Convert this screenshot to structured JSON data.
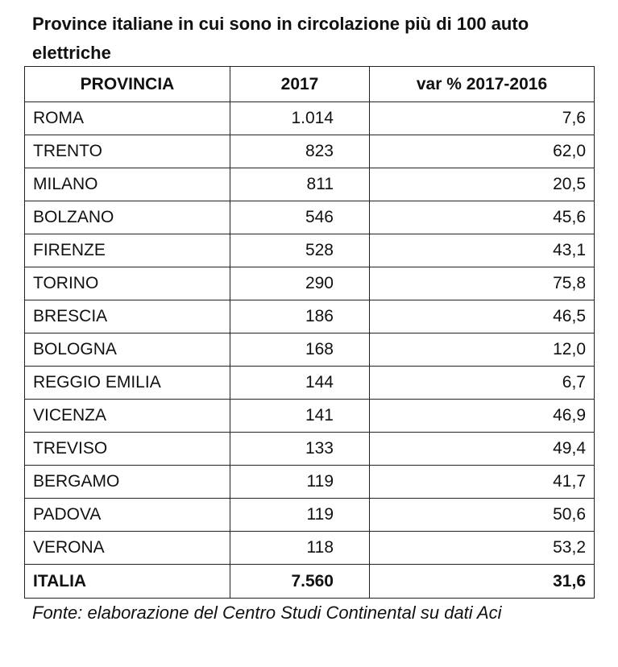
{
  "header": {
    "title": "Province italiane in cui sono in circolazione più di 100 auto elettriche"
  },
  "table": {
    "columns": [
      "PROVINCIA",
      "2017",
      "var % 2017-2016"
    ],
    "rows": [
      [
        "ROMA",
        "1.014",
        "7,6"
      ],
      [
        "TRENTO",
        "823",
        "62,0"
      ],
      [
        "MILANO",
        "811",
        "20,5"
      ],
      [
        "BOLZANO",
        "546",
        "45,6"
      ],
      [
        "FIRENZE",
        "528",
        "43,1"
      ],
      [
        "TORINO",
        "290",
        "75,8"
      ],
      [
        "BRESCIA",
        "186",
        "46,5"
      ],
      [
        "BOLOGNA",
        "168",
        "12,0"
      ],
      [
        "REGGIO EMILIA",
        "144",
        "6,7"
      ],
      [
        "VICENZA",
        "141",
        "46,9"
      ],
      [
        "TREVISO",
        "133",
        "49,4"
      ],
      [
        "BERGAMO",
        "119",
        "41,7"
      ],
      [
        "PADOVA",
        "119",
        "50,6"
      ],
      [
        "VERONA",
        "118",
        "53,2"
      ]
    ],
    "total": [
      "ITALIA",
      "7.560",
      "31,6"
    ]
  },
  "footer": {
    "source": "Fonte: elaborazione del Centro Studi Continental su dati Aci"
  }
}
